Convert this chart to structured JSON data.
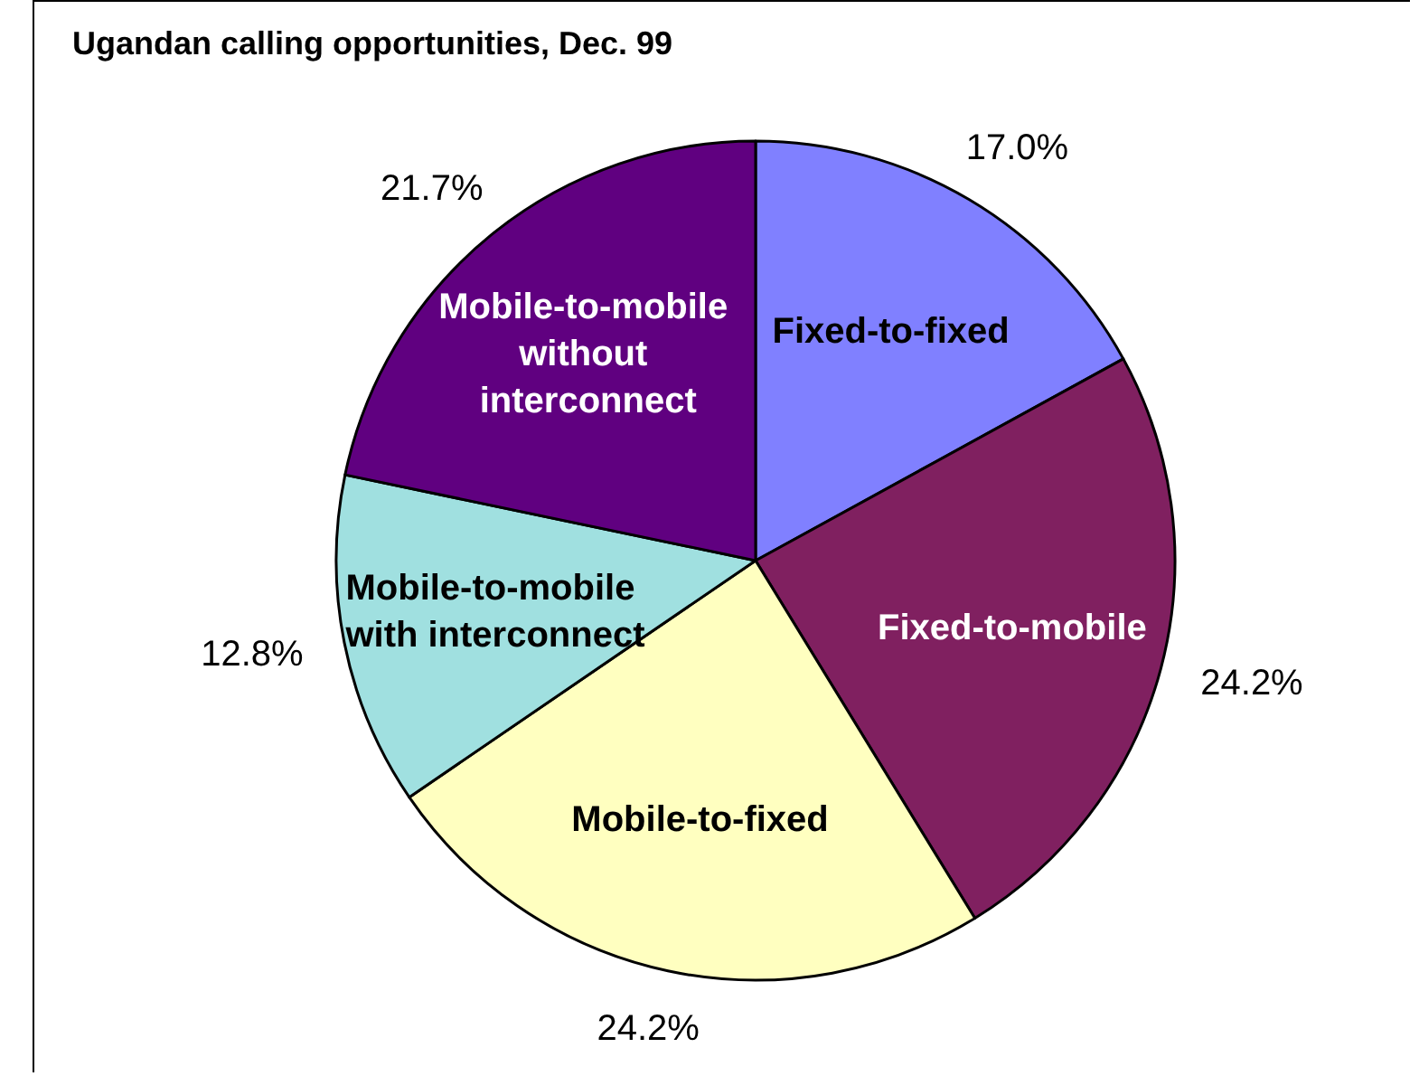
{
  "chart_data": {
    "type": "pie",
    "title": "Ugandan calling opportunities,",
    "subtitle": "Dec. 99",
    "categories": [
      "Fixed-to-fixed",
      "Fixed-to-mobile",
      "Mobile-to-fixed",
      "Mobile-to-mobile with interconnect",
      "Mobile-to-mobile without interconnect"
    ],
    "values": [
      17.0,
      24.2,
      24.2,
      12.8,
      21.7
    ],
    "value_labels": [
      "17.0%",
      "24.2%",
      "24.2%",
      "12.8%",
      "21.7%"
    ],
    "colors": [
      "#8080ff",
      "#802060",
      "#ffffc0",
      "#a0e0e0",
      "#600080"
    ],
    "legend": false
  }
}
